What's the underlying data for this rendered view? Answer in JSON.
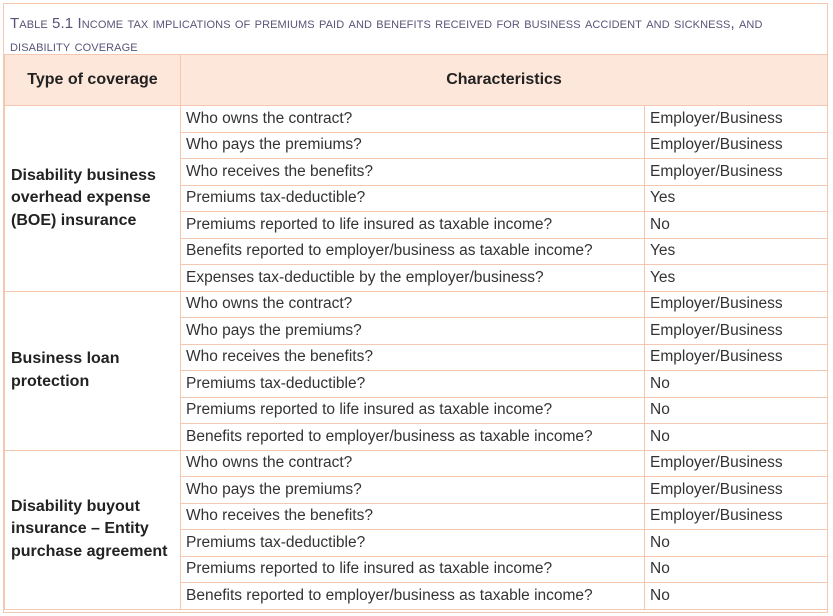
{
  "caption": {
    "prefix": "Table 5.1",
    "title": "Income tax implications of premiums paid and benefits received for business accident and sickness, and disability coverage"
  },
  "header": {
    "col_type": "Type of coverage",
    "col_characteristics": "Characteristics"
  },
  "groups": [
    {
      "type": "Disability business overhead expense (BOE) insurance",
      "rows": [
        {
          "question": "Who owns the contract?",
          "answer": "Employer/Business"
        },
        {
          "question": "Who pays the premiums?",
          "answer": "Employer/Business"
        },
        {
          "question": "Who receives the benefits?",
          "answer": "Employer/Business"
        },
        {
          "question": "Premiums tax-deductible?",
          "answer": "Yes"
        },
        {
          "question": "Premiums reported to life insured as taxable income?",
          "answer": "No"
        },
        {
          "question": "Benefits reported to employer/business as taxable income?",
          "answer": "Yes"
        },
        {
          "question": "Expenses tax-deductible by the employer/business?",
          "answer": "Yes"
        }
      ]
    },
    {
      "type": "Business loan protection",
      "rows": [
        {
          "question": "Who owns the contract?",
          "answer": "Employer/Business"
        },
        {
          "question": "Who pays the premiums?",
          "answer": "Employer/Business"
        },
        {
          "question": "Who receives the benefits?",
          "answer": "Employer/Business"
        },
        {
          "question": "Premiums tax-deductible?",
          "answer": "No"
        },
        {
          "question": "Premiums reported to life insured as taxable income?",
          "answer": "No"
        },
        {
          "question": "Benefits reported to employer/business as taxable income?",
          "answer": "No"
        }
      ]
    },
    {
      "type": "Disability buyout insurance – Entity purchase agreement",
      "rows": [
        {
          "question": "Who owns the contract?",
          "answer": "Employer/Business"
        },
        {
          "question": "Who pays the premiums?",
          "answer": "Employer/Business"
        },
        {
          "question": "Who receives the benefits?",
          "answer": "Employer/Business"
        },
        {
          "question": "Premiums tax-deductible?",
          "answer": "No"
        },
        {
          "question": "Premiums reported to life insured as taxable income?",
          "answer": "No"
        },
        {
          "question": "Benefits reported to employer/business as taxable income?",
          "answer": "No"
        }
      ]
    }
  ]
}
